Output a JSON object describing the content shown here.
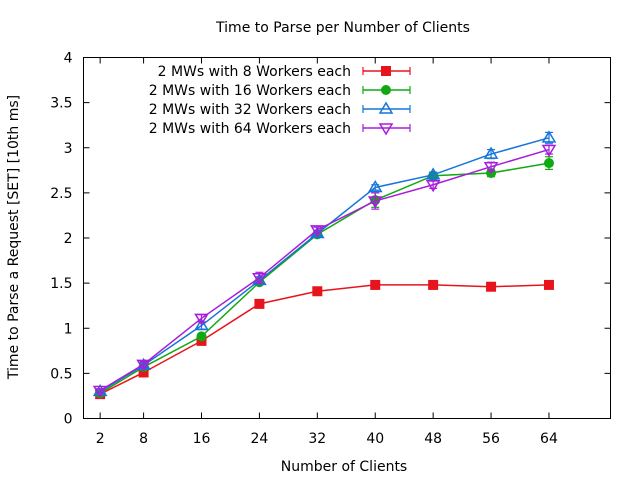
{
  "chart_data": {
    "type": "line",
    "title": "Time to Parse per Number of Clients",
    "xlabel": "Number of Clients",
    "ylabel": "Time to Parse a Request [SET] [10th ms]",
    "x": [
      2,
      8,
      16,
      24,
      32,
      40,
      48,
      56,
      64
    ],
    "x_tick_labels": [
      "2",
      "8",
      "16",
      "24",
      "32",
      "40",
      "48",
      "56",
      "64"
    ],
    "xlim": [
      -0.3,
      72.5
    ],
    "ylim": [
      0,
      4
    ],
    "y_ticks": [
      0,
      0.5,
      1,
      1.5,
      2,
      2.5,
      3,
      3.5,
      4
    ],
    "y_tick_labels": [
      "0",
      "0.5",
      "1",
      "1.5",
      "2",
      "2.5",
      "3",
      "3.5",
      "4"
    ],
    "legend_position": "top-left",
    "series": [
      {
        "name": "2 MWs with 8 Workers each",
        "color": "#e8141d",
        "marker": "square",
        "values": [
          0.27,
          0.51,
          0.86,
          1.27,
          1.41,
          1.48,
          1.48,
          1.46,
          1.48
        ],
        "errors": [
          0.02,
          0.02,
          0.02,
          0.02,
          0.02,
          0.03,
          0.02,
          0.02,
          0.02
        ]
      },
      {
        "name": "2 MWs with 16 Workers each",
        "color": "#11a911",
        "marker": "circle",
        "values": [
          0.28,
          0.57,
          0.91,
          1.51,
          2.04,
          2.42,
          2.69,
          2.72,
          2.83
        ],
        "errors": [
          0.02,
          0.02,
          0.03,
          0.03,
          0.03,
          0.08,
          0.04,
          0.04,
          0.07
        ]
      },
      {
        "name": "2 MWs with 32 Workers each",
        "color": "#1575d9",
        "marker": "triangle-up",
        "values": [
          0.3,
          0.59,
          1.03,
          1.53,
          2.05,
          2.56,
          2.7,
          2.93,
          3.11
        ],
        "errors": [
          0.02,
          0.03,
          0.04,
          0.04,
          0.03,
          0.03,
          0.03,
          0.05,
          0.06
        ]
      },
      {
        "name": "2 MWs with 64 Workers each",
        "color": "#a81ddc",
        "marker": "triangle-down",
        "values": [
          0.31,
          0.6,
          1.11,
          1.56,
          2.09,
          2.41,
          2.59,
          2.79,
          2.98
        ],
        "errors": [
          0.02,
          0.03,
          0.04,
          0.06,
          0.03,
          0.09,
          0.04,
          0.05,
          0.05
        ]
      }
    ]
  }
}
